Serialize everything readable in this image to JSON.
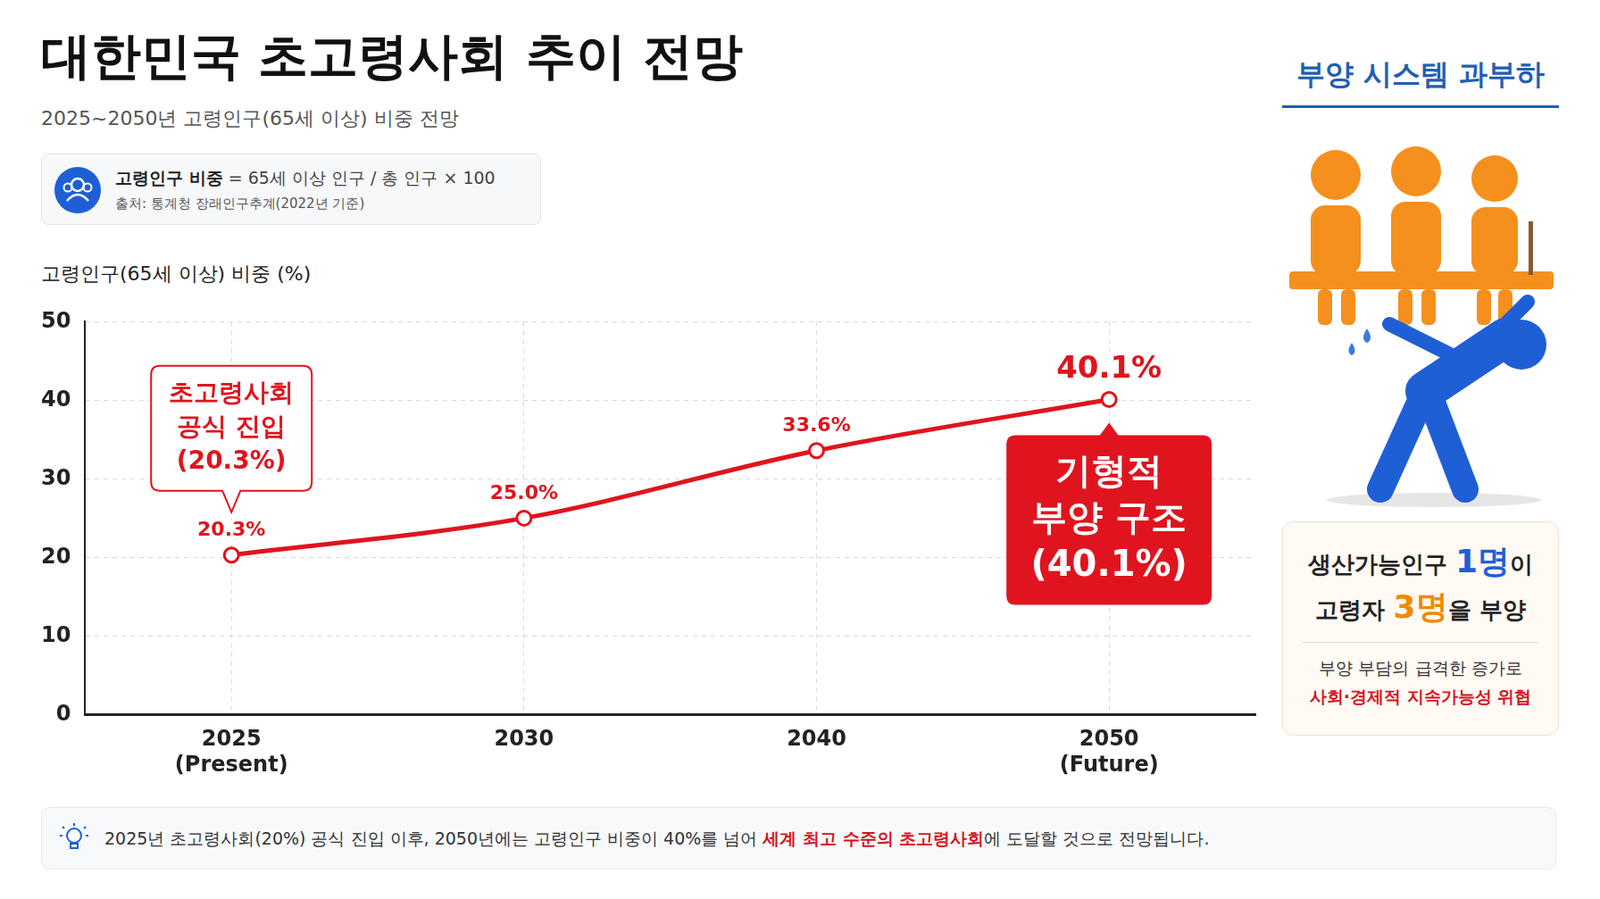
{
  "header": {
    "title": "대한민국 초고령사회 추이 전망",
    "subtitle": "2025~2050년 고령인구(65세 이상) 비중 전망"
  },
  "formula": {
    "label": "고령인구 비중",
    "expression": "= 65세 이상 인구 / 총 인구 × 100",
    "source": "출처: 통계청 장래인구추계(2022년 기준)"
  },
  "chart_data": {
    "type": "line",
    "y_label": "고령인구(65세 이상) 비중 (%)",
    "categories": [
      "2025",
      "2030",
      "2040",
      "2050"
    ],
    "category_sublabels": [
      "(Present)",
      null,
      null,
      "(Future)"
    ],
    "values": [
      20.3,
      25.0,
      33.6,
      40.1
    ],
    "value_labels": [
      "20.3%",
      "25.0%",
      "33.6%",
      "40.1%"
    ],
    "color": "#e0141e",
    "marker": "circle",
    "ylim": [
      0,
      50
    ],
    "yticks": [
      0,
      10,
      20,
      30,
      40,
      50
    ],
    "grid": true,
    "data_labels": true,
    "annotations": [
      {
        "category": "2025",
        "lines": [
          "초고령사회",
          "공식 진입",
          "(20.3%)"
        ]
      },
      {
        "category": "2050",
        "lines": [
          "기형적",
          "부양 구조",
          "(40.1%)"
        ]
      }
    ]
  },
  "side_panel": {
    "title": "부양 시스템 과부하",
    "statement": [
      [
        {
          "text": "생산가능인구 "
        },
        {
          "text": "1명",
          "color": "#1f5fd6"
        },
        {
          "text": "이"
        }
      ],
      [
        {
          "text": "고령자 "
        },
        {
          "text": "3명",
          "color": "#f08a00"
        },
        {
          "text": "을 부양"
        }
      ]
    ],
    "detail": [
      [
        {
          "text": "부양 부담의 급격한 증가로"
        }
      ],
      [
        {
          "text": "사회·경제적 지속가능성 위협",
          "color": "#d7141e"
        }
      ]
    ]
  },
  "footnote": [
    {
      "text": "2025년 초고령사회(20%) 공식 진입 이후, 2050년에는 고령인구 비중이 40%를 넘어 "
    },
    {
      "text": "세계 최고 수준의 초고령사회",
      "color": "#d7141e"
    },
    {
      "text": "에 도달할 것으로 전망됩니다."
    }
  ]
}
